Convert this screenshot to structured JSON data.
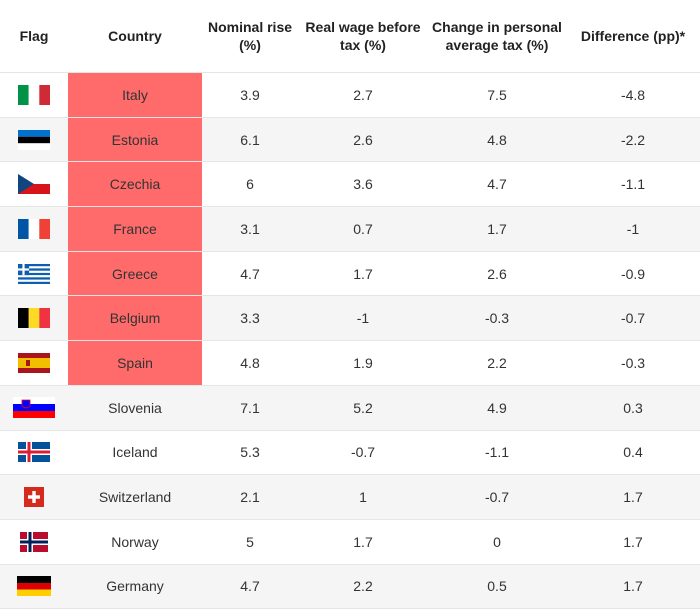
{
  "headers": {
    "flag": "Flag",
    "country": "Country",
    "nominal": "Nominal rise (%)",
    "real": "Real wage before tax (%)",
    "change": "Change in personal average tax (%)",
    "difference": "Difference (pp)*"
  },
  "rows": [
    {
      "flag_icon": "italy-flag-icon",
      "country": "Italy",
      "nominal": "3.9",
      "real": "2.7",
      "change": "7.5",
      "difference": "-4.8",
      "highlight": true
    },
    {
      "flag_icon": "estonia-flag-icon",
      "country": "Estonia",
      "nominal": "6.1",
      "real": "2.6",
      "change": "4.8",
      "difference": "-2.2",
      "highlight": true
    },
    {
      "flag_icon": "czechia-flag-icon",
      "country": "Czechia",
      "nominal": "6",
      "real": "3.6",
      "change": "4.7",
      "difference": "-1.1",
      "highlight": true
    },
    {
      "flag_icon": "france-flag-icon",
      "country": "France",
      "nominal": "3.1",
      "real": "0.7",
      "change": "1.7",
      "difference": "-1",
      "highlight": true
    },
    {
      "flag_icon": "greece-flag-icon",
      "country": "Greece",
      "nominal": "4.7",
      "real": "1.7",
      "change": "2.6",
      "difference": "-0.9",
      "highlight": true
    },
    {
      "flag_icon": "belgium-flag-icon",
      "country": "Belgium",
      "nominal": "3.3",
      "real": "-1",
      "change": "-0.3",
      "difference": "-0.7",
      "highlight": true
    },
    {
      "flag_icon": "spain-flag-icon",
      "country": "Spain",
      "nominal": "4.8",
      "real": "1.9",
      "change": "2.2",
      "difference": "-0.3",
      "highlight": true
    },
    {
      "flag_icon": "slovenia-flag-icon",
      "country": "Slovenia",
      "nominal": "7.1",
      "real": "5.2",
      "change": "4.9",
      "difference": "0.3",
      "highlight": false
    },
    {
      "flag_icon": "iceland-flag-icon",
      "country": "Iceland",
      "nominal": "5.3",
      "real": "-0.7",
      "change": "-1.1",
      "difference": "0.4",
      "highlight": false
    },
    {
      "flag_icon": "switzerland-flag-icon",
      "country": "Switzerland",
      "nominal": "2.1",
      "real": "1",
      "change": "-0.7",
      "difference": "1.7",
      "highlight": false
    },
    {
      "flag_icon": "norway-flag-icon",
      "country": "Norway",
      "nominal": "5",
      "real": "1.7",
      "change": "0",
      "difference": "1.7",
      "highlight": false
    },
    {
      "flag_icon": "germany-flag-icon",
      "country": "Germany",
      "nominal": "4.7",
      "real": "2.2",
      "change": "0.5",
      "difference": "1.7",
      "highlight": false
    }
  ],
  "colors": {
    "highlight": "#ff6b6b",
    "row_alt": "#f5f5f5"
  }
}
